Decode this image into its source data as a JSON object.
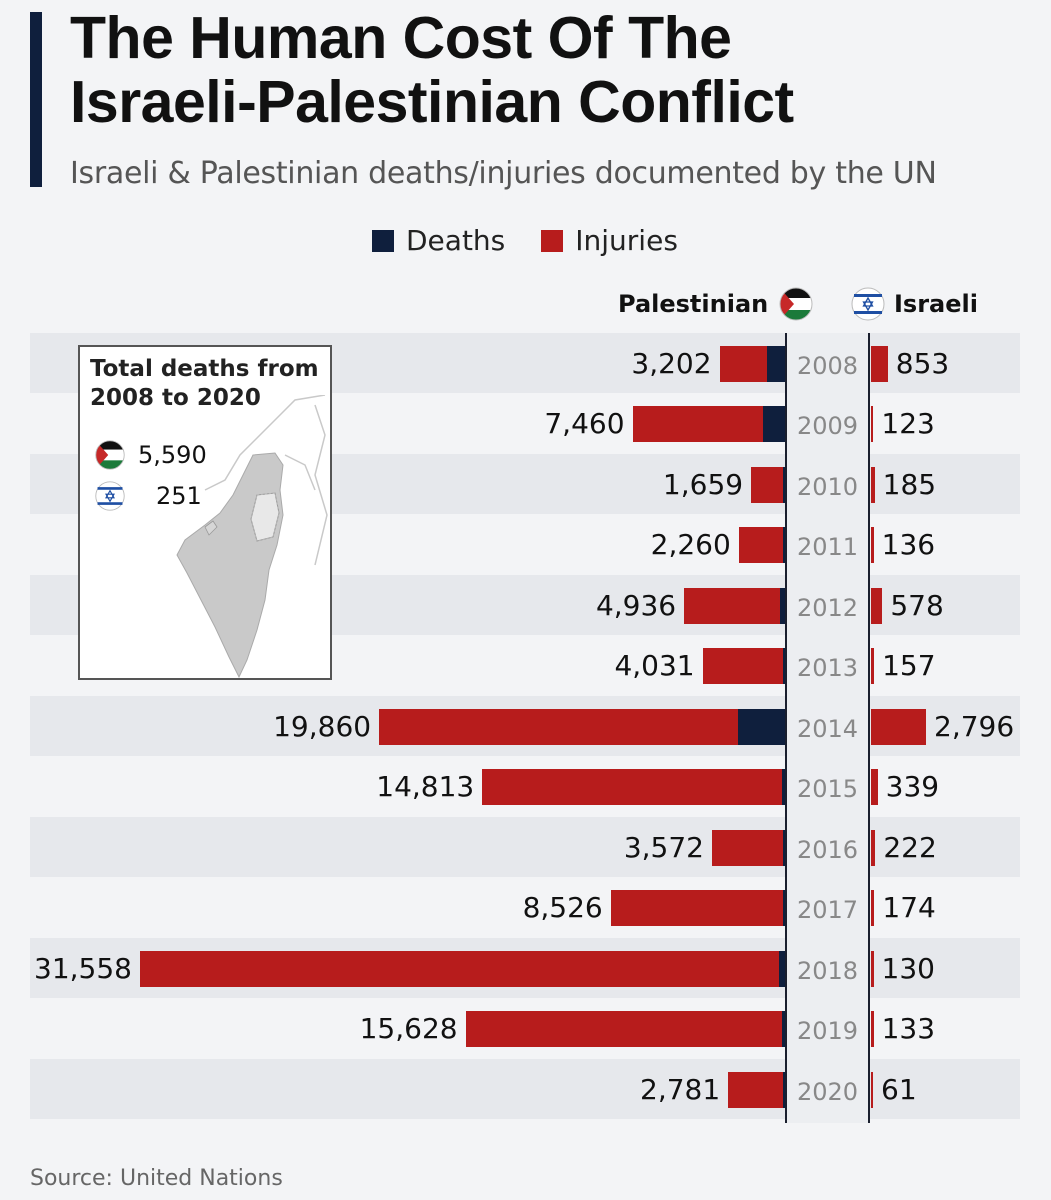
{
  "title_line1": "The Human Cost Of The",
  "title_line2": "Israeli-Palestinian Conflict",
  "subtitle": "Israeli & Palestinian deaths/injuries documented by the UN",
  "legend": {
    "deaths": "Deaths",
    "injuries": "Injuries"
  },
  "columns": {
    "left": "Palestinian",
    "right": "Israeli"
  },
  "inset": {
    "title_line1": "Total deaths from",
    "title_line2": "2008 to 2020",
    "palestinian_total": "5,590",
    "israeli_total": "251"
  },
  "source": "Source: United Nations",
  "colors": {
    "deaths": "#0f1f3d",
    "injuries": "#b71c1c",
    "pal_red": "#c62828",
    "pal_green": "#1b7a3a",
    "isr_blue": "#1f4fa3"
  },
  "chart_data": {
    "type": "bar",
    "title": "The Human Cost Of The Israeli-Palestinian Conflict",
    "orientation": "horizontal-butterfly",
    "categories": [
      "2008",
      "2009",
      "2010",
      "2011",
      "2012",
      "2013",
      "2014",
      "2015",
      "2016",
      "2017",
      "2018",
      "2019",
      "2020"
    ],
    "palestinian_totals": [
      3202,
      7460,
      1659,
      2260,
      4936,
      4031,
      19860,
      14813,
      3572,
      8526,
      31558,
      15628,
      2781
    ],
    "palestinian_totals_labels": [
      "3,202",
      "7,460",
      "1,659",
      "2,260",
      "4,936",
      "4,031",
      "19,860",
      "14,813",
      "3,572",
      "8,526",
      "31,558",
      "15,628",
      "2,781"
    ],
    "palestinian_deaths": [
      900,
      1070,
      90,
      120,
      260,
      40,
      2300,
      170,
      110,
      80,
      300,
      140,
      30
    ],
    "israeli_totals": [
      853,
      123,
      185,
      136,
      578,
      157,
      2796,
      339,
      222,
      174,
      130,
      133,
      61
    ],
    "israeli_totals_labels": [
      "853",
      "123",
      "185",
      "136",
      "578",
      "157",
      "2,796",
      "339",
      "222",
      "174",
      "130",
      "133",
      "61"
    ],
    "series": [
      {
        "name": "Deaths",
        "color": "#0f1f3d"
      },
      {
        "name": "Injuries",
        "color": "#b71c1c"
      }
    ],
    "xlim_left": [
      0,
      31558
    ],
    "xlim_right": [
      0,
      2796
    ]
  }
}
